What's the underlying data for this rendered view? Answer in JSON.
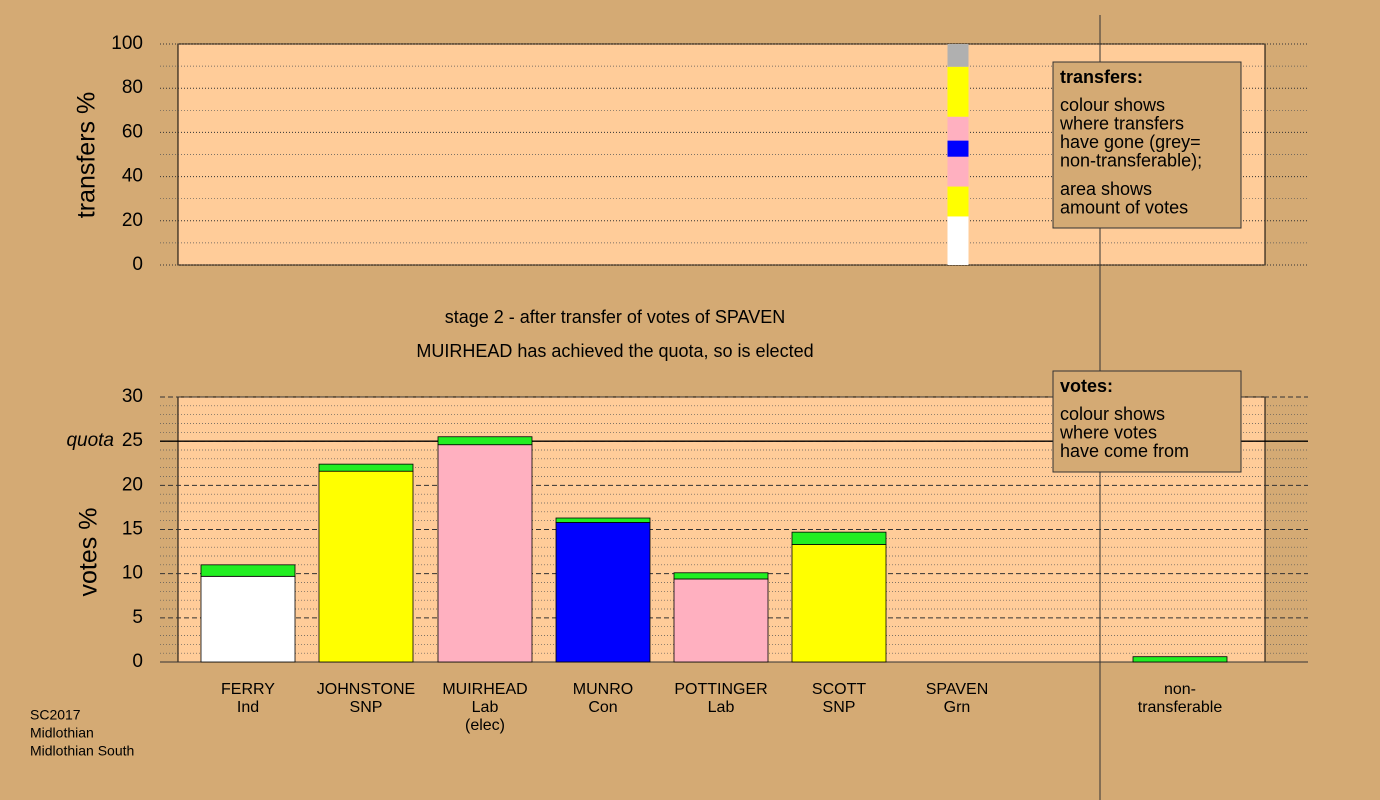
{
  "title": "stage 2 - after transfer of votes of SPAVEN",
  "subtitle": "MUIRHEAD has achieved the quota, so is elected",
  "footer": [
    "SC2017",
    "Midlothian",
    "Midlothian South"
  ],
  "legends": [
    {
      "title": "transfers:",
      "paragraphs": [
        [
          "colour shows",
          "where transfers",
          "have gone (grey=",
          "non-transferable);"
        ],
        [
          "area shows",
          "amount of votes"
        ]
      ]
    },
    {
      "title": "votes:",
      "paragraphs": [
        [
          "colour shows",
          "where votes",
          "have come from"
        ]
      ]
    }
  ],
  "chart_data": [
    {
      "type": "stacked_bar",
      "ylabel": "transfers %",
      "categories": [
        null
      ],
      "ylim": [
        0,
        100
      ],
      "yticks": [
        0,
        20,
        40,
        60,
        80,
        100
      ],
      "minor_yticks": [
        10,
        30,
        50,
        70,
        90
      ],
      "grid": true,
      "series": [
        {
          "color": "#ffffff",
          "values": [
            22
          ]
        },
        {
          "color": "#ffff00",
          "values": [
            13.5
          ]
        },
        {
          "color": "#ffb0c0",
          "values": [
            13.5
          ]
        },
        {
          "color": "#0000ff",
          "values": [
            7.3
          ]
        },
        {
          "color": "#ffb0c0",
          "values": [
            10.8
          ]
        },
        {
          "color": "#ffff00",
          "values": [
            22.6
          ]
        },
        {
          "color": "#b0b0b0",
          "values": [
            10.3
          ]
        }
      ]
    },
    {
      "type": "stacked_bar",
      "ylabel": "votes %",
      "categories": [
        [
          "FERRY",
          "Ind"
        ],
        [
          "JOHNSTONE",
          "SNP"
        ],
        [
          "MUIRHEAD",
          "Lab",
          "(elec)"
        ],
        [
          "MUNRO",
          "Con"
        ],
        [
          "POTTINGER",
          "Lab"
        ],
        [
          "SCOTT",
          "SNP"
        ],
        [
          "SPAVEN",
          "Grn"
        ],
        [
          "non-",
          "transferable"
        ]
      ],
      "ylim": [
        0,
        30
      ],
      "yticks": [
        0,
        5,
        10,
        15,
        20,
        25,
        30
      ],
      "minor_yticks": [
        1,
        2,
        3,
        4,
        6,
        7,
        8,
        9,
        11,
        12,
        13,
        14,
        16,
        17,
        18,
        19,
        21,
        22,
        23,
        24,
        26,
        27,
        28,
        29
      ],
      "quota": {
        "value": 25,
        "label": "quota"
      },
      "grid": true,
      "series": [
        {
          "colors": [
            "#ffffff",
            "#ffff00",
            "#ffb0c0",
            "#0000ff",
            "#ffb0c0",
            "#ffff00",
            "#00ff00",
            "#00ff00"
          ],
          "values": [
            9.7,
            21.6,
            24.6,
            15.8,
            9.4,
            13.3,
            0,
            0
          ]
        },
        {
          "color": "#22ee22",
          "values": [
            1.3,
            0.8,
            0.9,
            0.5,
            0.7,
            1.4,
            0,
            0.6
          ]
        }
      ]
    }
  ]
}
